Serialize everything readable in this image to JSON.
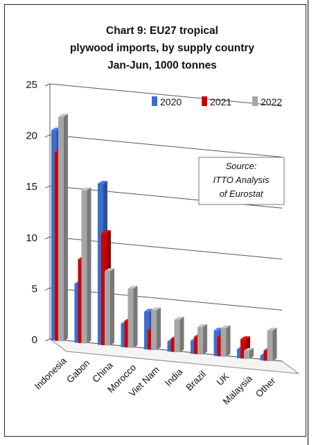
{
  "chart_data": {
    "type": "bar",
    "title_lines": [
      "Chart 9: EU27 tropical",
      "plywood imports, by supply country",
      "Jan-Jun, 1000 tonnes"
    ],
    "categories": [
      "Indonesia",
      "Gabon",
      "China",
      "Morocco",
      "Viet Nam",
      "India",
      "Brazil",
      "UK",
      "Malaysia",
      "Other"
    ],
    "series": [
      {
        "name": "2020",
        "color": "#3a6fd0",
        "values": [
          20.6,
          5.8,
          15.8,
          2.3,
          3.7,
          1.0,
          1.3,
          2.5,
          0.9,
          0.5
        ]
      },
      {
        "name": "2021",
        "color": "#cc0000",
        "values": [
          18.5,
          8.2,
          11.0,
          2.6,
          1.9,
          1.3,
          1.7,
          1.9,
          1.9,
          1.0
        ]
      },
      {
        "name": "2022",
        "color": "#a6a6a6",
        "values": [
          22.0,
          15.0,
          7.3,
          5.8,
          3.9,
          3.2,
          2.7,
          2.8,
          0.8,
          3.0
        ]
      }
    ],
    "yticks": [
      0,
      5,
      10,
      15,
      20,
      25
    ],
    "ylim": [
      0,
      25
    ],
    "legend_position": "top-right",
    "grid": true,
    "annotation_lines": [
      "Source:",
      "ITTO Analysis",
      "of Eurostat"
    ]
  }
}
